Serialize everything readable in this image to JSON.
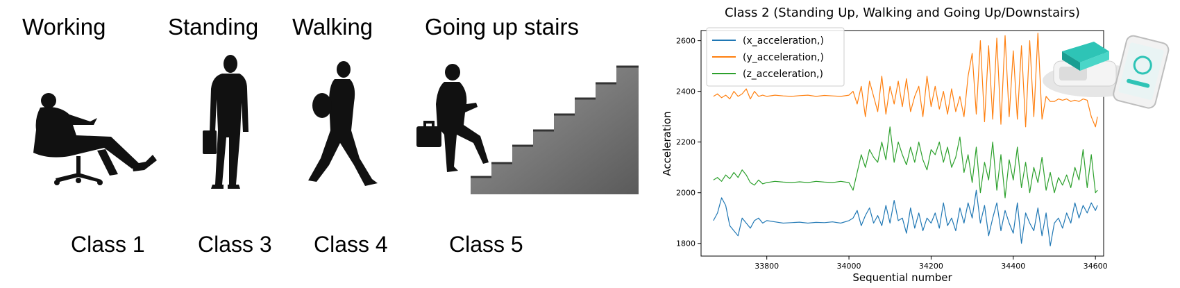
{
  "activities": [
    {
      "title": "Working",
      "class_label": "Class 1"
    },
    {
      "title": "Standing",
      "class_label": "Class 3"
    },
    {
      "title": "Walking",
      "class_label": "Class 4"
    },
    {
      "title": "Going up stairs",
      "class_label": "Class 5"
    }
  ],
  "icons": [
    "person-reclining-in-office-chair-icon",
    "person-standing-with-briefcase-icon",
    "person-walking-with-bag-icon",
    "person-climbing-stairs-icon",
    "accelerometer-sensor-device-icon",
    "smartphone-icon"
  ],
  "chart_data": {
    "type": "line",
    "title": "Class 2 (Standing Up, Walking and Going Up/Downstairs)",
    "xlabel": "Sequential number",
    "ylabel": "Acceleration",
    "xlim": [
      33640,
      34620
    ],
    "ylim": [
      1750,
      2640
    ],
    "xticks": [
      33800,
      34000,
      34200,
      34400,
      34600
    ],
    "yticks": [
      1800,
      2000,
      2200,
      2400,
      2600
    ],
    "legend_position": "top-left",
    "grid": false,
    "series": [
      {
        "name": "(x_acceleration,)",
        "color": "#1f77b4",
        "x": [
          33670,
          33680,
          33690,
          33700,
          33710,
          33720,
          33730,
          33740,
          33750,
          33760,
          33770,
          33780,
          33790,
          33800,
          33820,
          33840,
          33860,
          33880,
          33900,
          33920,
          33940,
          33960,
          33980,
          34000,
          34010,
          34020,
          34030,
          34040,
          34050,
          34060,
          34070,
          34080,
          34090,
          34100,
          34110,
          34120,
          34130,
          34140,
          34150,
          34160,
          34170,
          34180,
          34190,
          34200,
          34210,
          34220,
          34230,
          34240,
          34250,
          34260,
          34270,
          34280,
          34290,
          34300,
          34310,
          34320,
          34330,
          34340,
          34350,
          34360,
          34370,
          34380,
          34390,
          34400,
          34410,
          34420,
          34430,
          34440,
          34450,
          34460,
          34470,
          34480,
          34490,
          34500,
          34510,
          34520,
          34530,
          34540,
          34550,
          34560,
          34570,
          34580,
          34590,
          34600,
          34605
        ],
        "values": [
          1890,
          1920,
          1980,
          1950,
          1870,
          1850,
          1830,
          1900,
          1880,
          1860,
          1890,
          1900,
          1880,
          1890,
          1885,
          1880,
          1882,
          1884,
          1880,
          1883,
          1882,
          1885,
          1880,
          1890,
          1900,
          1930,
          1870,
          1910,
          1940,
          1880,
          1910,
          1870,
          1950,
          1880,
          1970,
          1890,
          1900,
          1840,
          1940,
          1860,
          1920,
          1850,
          1900,
          1880,
          1920,
          1860,
          1960,
          1870,
          1900,
          1850,
          1940,
          1880,
          1960,
          1900,
          2010,
          1880,
          1950,
          1830,
          1900,
          1960,
          1850,
          1930,
          1880,
          1840,
          1960,
          1800,
          1920,
          1880,
          1850,
          1940,
          1830,
          1920,
          1790,
          1880,
          1900,
          1860,
          1920,
          1880,
          1960,
          1900,
          1950,
          1920,
          1960,
          1930,
          1950
        ]
      },
      {
        "name": "(y_acceleration,)",
        "color": "#ff7f0e",
        "x": [
          33670,
          33680,
          33690,
          33700,
          33710,
          33720,
          33730,
          33740,
          33750,
          33760,
          33770,
          33780,
          33790,
          33800,
          33820,
          33840,
          33860,
          33880,
          33900,
          33920,
          33940,
          33960,
          33980,
          34000,
          34010,
          34020,
          34030,
          34040,
          34050,
          34060,
          34070,
          34080,
          34090,
          34100,
          34110,
          34120,
          34130,
          34140,
          34150,
          34160,
          34170,
          34180,
          34190,
          34200,
          34210,
          34220,
          34230,
          34240,
          34250,
          34260,
          34270,
          34280,
          34290,
          34300,
          34310,
          34320,
          34330,
          34340,
          34350,
          34360,
          34370,
          34380,
          34390,
          34400,
          34410,
          34420,
          34430,
          34440,
          34450,
          34460,
          34470,
          34480,
          34490,
          34500,
          34510,
          34520,
          34530,
          34540,
          34550,
          34560,
          34570,
          34580,
          34590,
          34600,
          34605
        ],
        "values": [
          2380,
          2390,
          2375,
          2385,
          2370,
          2400,
          2380,
          2390,
          2410,
          2370,
          2400,
          2380,
          2385,
          2380,
          2385,
          2382,
          2380,
          2383,
          2385,
          2380,
          2384,
          2382,
          2380,
          2385,
          2400,
          2350,
          2420,
          2300,
          2440,
          2380,
          2320,
          2460,
          2310,
          2420,
          2350,
          2440,
          2340,
          2450,
          2320,
          2380,
          2420,
          2300,
          2460,
          2340,
          2420,
          2330,
          2400,
          2310,
          2410,
          2320,
          2380,
          2300,
          2460,
          2550,
          2310,
          2600,
          2280,
          2580,
          2290,
          2610,
          2270,
          2620,
          2300,
          2560,
          2290,
          2580,
          2260,
          2600,
          2300,
          2630,
          2290,
          2380,
          2360,
          2360,
          2370,
          2365,
          2370,
          2360,
          2365,
          2360,
          2370,
          2365,
          2300,
          2260,
          2300
        ]
      },
      {
        "name": "(z_acceleration,)",
        "color": "#2ca02c",
        "x": [
          33670,
          33680,
          33690,
          33700,
          33710,
          33720,
          33730,
          33740,
          33750,
          33760,
          33770,
          33780,
          33790,
          33800,
          33820,
          33840,
          33860,
          33880,
          33900,
          33920,
          33940,
          33960,
          33980,
          34000,
          34010,
          34020,
          34030,
          34040,
          34050,
          34060,
          34070,
          34080,
          34090,
          34100,
          34110,
          34120,
          34130,
          34140,
          34150,
          34160,
          34170,
          34180,
          34190,
          34200,
          34210,
          34220,
          34230,
          34240,
          34250,
          34260,
          34270,
          34280,
          34290,
          34300,
          34310,
          34320,
          34330,
          34340,
          34350,
          34360,
          34370,
          34380,
          34390,
          34400,
          34410,
          34420,
          34430,
          34440,
          34450,
          34460,
          34470,
          34480,
          34490,
          34500,
          34510,
          34520,
          34530,
          34540,
          34550,
          34560,
          34570,
          34580,
          34590,
          34600,
          34605
        ],
        "values": [
          2050,
          2060,
          2045,
          2070,
          2055,
          2080,
          2060,
          2090,
          2070,
          2040,
          2030,
          2050,
          2035,
          2040,
          2045,
          2042,
          2040,
          2043,
          2040,
          2045,
          2042,
          2040,
          2045,
          2040,
          2010,
          2080,
          2150,
          2100,
          2170,
          2140,
          2120,
          2200,
          2130,
          2260,
          2120,
          2200,
          2150,
          2110,
          2180,
          2120,
          2200,
          2130,
          2090,
          2170,
          2150,
          2200,
          2120,
          2180,
          2100,
          2140,
          2220,
          2080,
          2150,
          2040,
          2180,
          2000,
          2120,
          2050,
          2200,
          2010,
          2150,
          1980,
          2130,
          2050,
          2180,
          2020,
          2120,
          2000,
          2100,
          2040,
          2140,
          2010,
          2080,
          2000,
          2060,
          2030,
          2070,
          2020,
          2100,
          2050,
          2170,
          2020,
          2150,
          2000,
          2010
        ]
      }
    ]
  }
}
